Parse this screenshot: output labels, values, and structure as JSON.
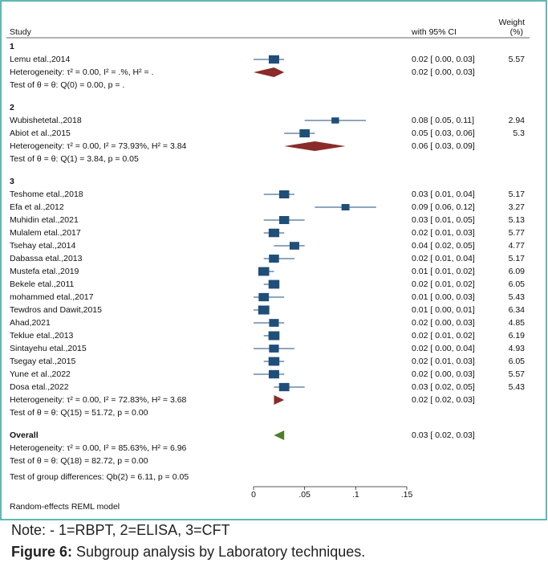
{
  "chart_data": {
    "type": "forest",
    "header": {
      "study": "Study",
      "ci": "with 95% CI",
      "weight": [
        "Weight",
        "(%)"
      ]
    },
    "groups": [
      {
        "label": "1",
        "studies": [
          {
            "name": "Lemu etal.,2014",
            "value": 0.02,
            "lower": 0.0,
            "upper": 0.03,
            "label": "0.02 [ 0.00, 0.03]",
            "weight": 5.57
          }
        ],
        "summary": {
          "value": 0.02,
          "lower": 0.0,
          "upper": 0.03,
          "label": "0.02 [ 0.00, 0.03]"
        },
        "heterogeneity": "Heterogeneity: τ² = 0.00, I² = .%, H² = .",
        "test": "Test of θ = θ: Q(0) = 0.00, p = ."
      },
      {
        "label": "2",
        "studies": [
          {
            "name": "Wubishetetal.,2018",
            "value": 0.08,
            "lower": 0.05,
            "upper": 0.11,
            "label": "0.08 [ 0.05, 0.11]",
            "weight": 2.94
          },
          {
            "name": "Abiot et al.,2015",
            "value": 0.05,
            "lower": 0.03,
            "upper": 0.06,
            "label": "0.05 [ 0.03, 0.06]",
            "weight": 5.3
          }
        ],
        "summary": {
          "value": 0.06,
          "lower": 0.03,
          "upper": 0.09,
          "label": "0.06 [ 0.03, 0.09]"
        },
        "heterogeneity": "Heterogeneity: τ² = 0.00, I² = 73.93%, H² = 3.84",
        "test": "Test of θ = θ: Q(1) = 3.84, p = 0.05"
      },
      {
        "label": "3",
        "studies": [
          {
            "name": "Teshome etal.,2018",
            "value": 0.03,
            "lower": 0.01,
            "upper": 0.04,
            "label": "0.03 [ 0.01, 0.04]",
            "weight": 5.17
          },
          {
            "name": "Efa et al.,2012",
            "value": 0.09,
            "lower": 0.06,
            "upper": 0.12,
            "label": "0.09 [ 0.06, 0.12]",
            "weight": 3.27
          },
          {
            "name": "Muhidin etal.,2021",
            "value": 0.03,
            "lower": 0.01,
            "upper": 0.05,
            "label": "0.03 [ 0.01, 0.05]",
            "weight": 5.13
          },
          {
            "name": "Mulalem etal.,2017",
            "value": 0.02,
            "lower": 0.01,
            "upper": 0.03,
            "label": "0.02 [ 0.01, 0.03]",
            "weight": 5.77
          },
          {
            "name": "Tsehay etal.,2014",
            "value": 0.04,
            "lower": 0.02,
            "upper": 0.05,
            "label": "0.04 [ 0.02, 0.05]",
            "weight": 4.77
          },
          {
            "name": "Dabassa etal.,2013",
            "value": 0.02,
            "lower": 0.01,
            "upper": 0.04,
            "label": "0.02 [ 0.01, 0.04]",
            "weight": 5.17
          },
          {
            "name": "Mustefa etal.,2019",
            "value": 0.01,
            "lower": 0.01,
            "upper": 0.02,
            "label": "0.01 [ 0.01, 0.02]",
            "weight": 6.09
          },
          {
            "name": "Bekele etal.,2011",
            "value": 0.02,
            "lower": 0.01,
            "upper": 0.02,
            "label": "0.02 [ 0.01, 0.02]",
            "weight": 6.05
          },
          {
            "name": "mohammed etal.,2017",
            "value": 0.01,
            "lower": 0.0,
            "upper": 0.03,
            "label": "0.01 [ 0.00, 0.03]",
            "weight": 5.43
          },
          {
            "name": "Tewdros and Dawit,2015",
            "value": 0.01,
            "lower": 0.0,
            "upper": 0.01,
            "label": "0.01 [ 0.00, 0.01]",
            "weight": 6.34
          },
          {
            "name": "Ahad,2021",
            "value": 0.02,
            "lower": 0.0,
            "upper": 0.03,
            "label": "0.02 [ 0.00, 0.03]",
            "weight": 4.85
          },
          {
            "name": "Teklue etal.,2013",
            "value": 0.02,
            "lower": 0.01,
            "upper": 0.02,
            "label": "0.02 [ 0.01, 0.02]",
            "weight": 6.19
          },
          {
            "name": "Sintayehu etal.,2015",
            "value": 0.02,
            "lower": 0.0,
            "upper": 0.04,
            "label": "0.02 [ 0.00, 0.04]",
            "weight": 4.93
          },
          {
            "name": "Tsegay etal.,2015",
            "value": 0.02,
            "lower": 0.01,
            "upper": 0.03,
            "label": "0.02 [ 0.01, 0.03]",
            "weight": 6.05
          },
          {
            "name": "Yune et al.,2022",
            "value": 0.02,
            "lower": 0.0,
            "upper": 0.03,
            "label": "0.02 [ 0.00, 0.03]",
            "weight": 5.57
          },
          {
            "name": "Dosa etal.,2022",
            "value": 0.03,
            "lower": 0.02,
            "upper": 0.05,
            "label": "0.03 [ 0.02, 0.05]",
            "weight": 5.43
          }
        ],
        "summary": {
          "value": 0.02,
          "lower": 0.02,
          "upper": 0.03,
          "label": "0.02 [ 0.02, 0.03]"
        },
        "heterogeneity": "Heterogeneity: τ² = 0.00, I² = 72.83%, H² = 3.68",
        "test": "Test of θ = θ: Q(15) = 51.72, p = 0.00"
      }
    ],
    "overall": {
      "name": "Overall",
      "value": 0.03,
      "lower": 0.02,
      "upper": 0.03,
      "label": "0.03 [ 0.02, 0.03]",
      "heterogeneity": "Heterogeneity: τ² = 0.00, I² = 85.63%, H² = 6.96",
      "test": "Test of θ = θ: Q(18) = 82.72, p = 0.00"
    },
    "group_test": "Test of group differences: Qb(2) = 6.11, p = 0.05",
    "model": "Random-effects REML model",
    "xlim": [
      0,
      0.15
    ],
    "xticks": [
      0,
      {
        "value": 0.05,
        "label": ".05"
      },
      {
        "value": 0.1,
        "label": ".1"
      },
      {
        "value": 0.15,
        "label": ".15"
      }
    ],
    "colors": {
      "study": "#1f4e79",
      "subgroup": "#8b2a2a",
      "overall": "#4e7d2c"
    }
  },
  "note": "Note: - 1=RBPT, 2=ELISA, 3=CFT",
  "caption": {
    "label": "Figure 6:",
    "text": " Subgroup analysis by Laboratory techniques."
  }
}
